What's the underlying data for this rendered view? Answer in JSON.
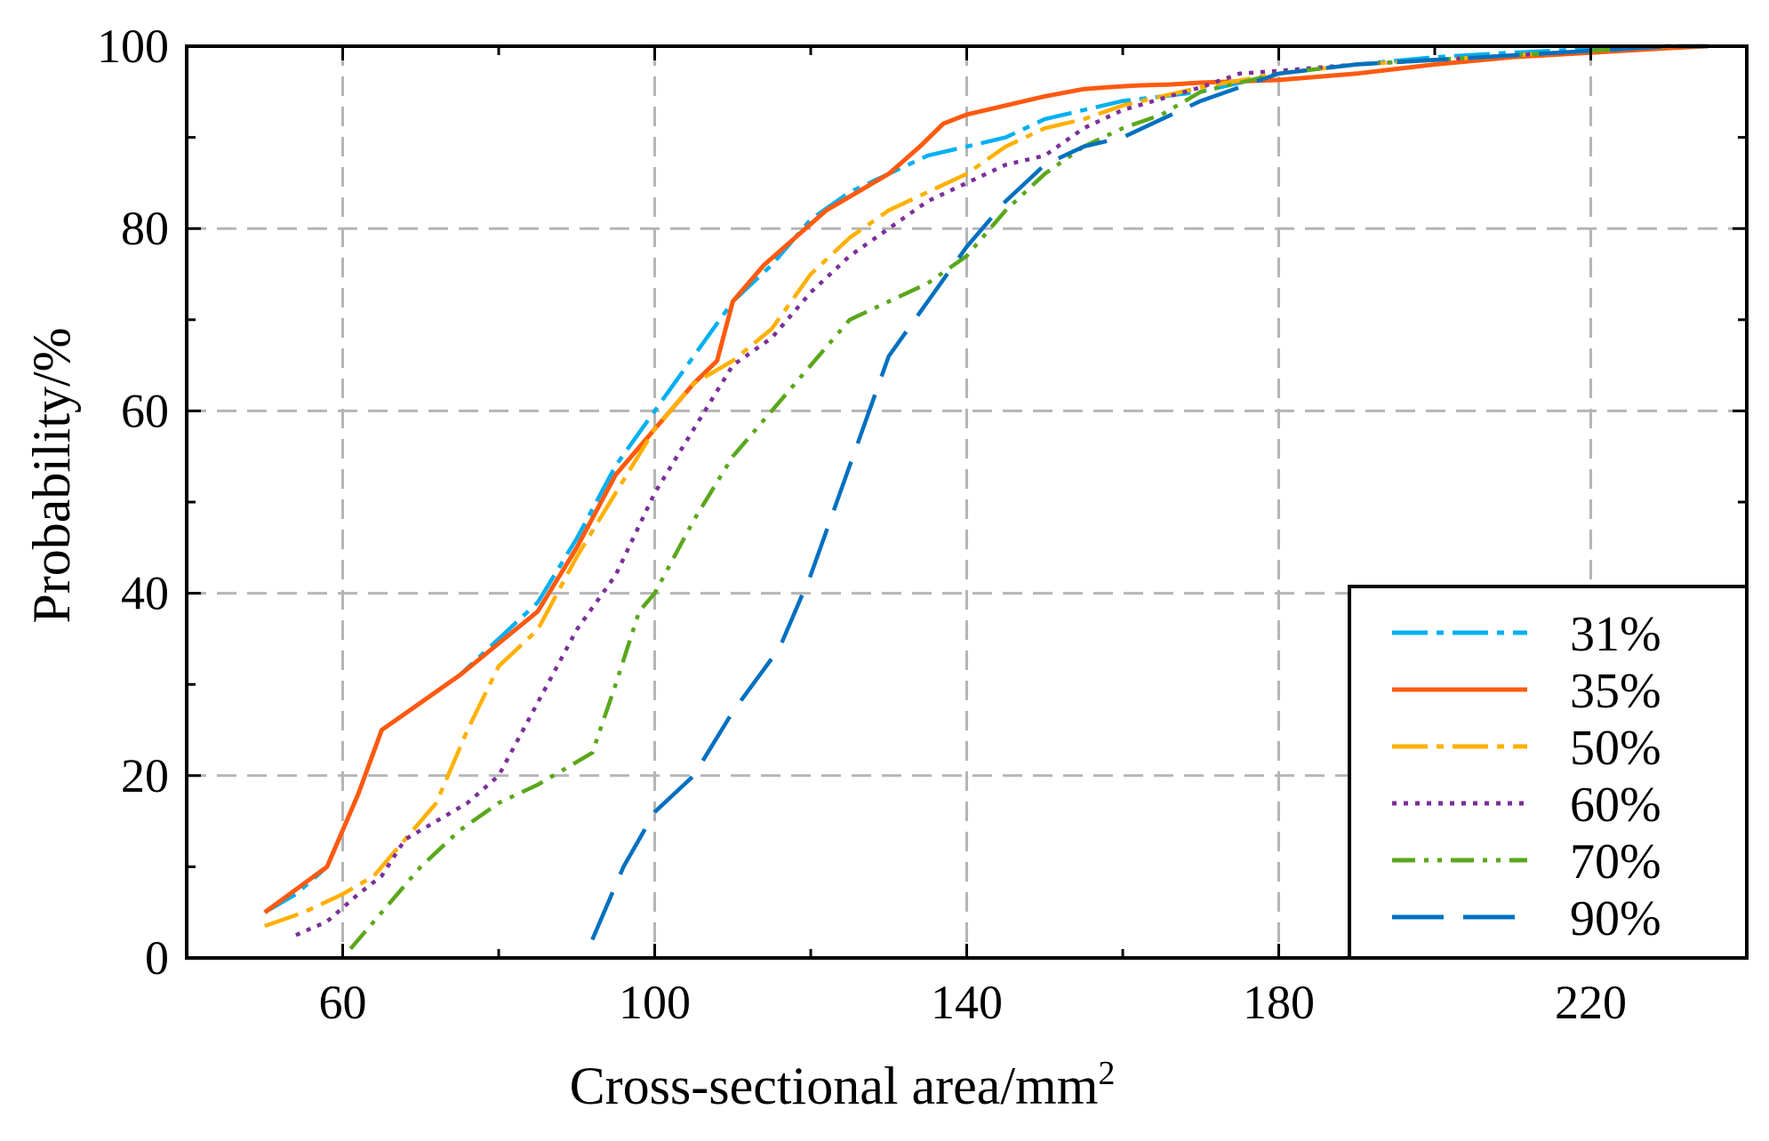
{
  "chart_data": {
    "type": "line",
    "title": "",
    "xlabel": "Cross-sectional area/mm",
    "xlabel_superscript": "2",
    "ylabel": "Probability/%",
    "xlim": [
      40,
      240
    ],
    "ylim": [
      0,
      100
    ],
    "xticks": [
      60,
      100,
      140,
      180,
      220
    ],
    "xtick_labels": [
      "60",
      "100",
      "140",
      "180",
      "220"
    ],
    "yticks": [
      0,
      20,
      40,
      60,
      80,
      100
    ],
    "ytick_labels": [
      "0",
      "20",
      "40",
      "60",
      "80",
      "100"
    ],
    "grid": true,
    "legend_position": "bottom-right",
    "series": [
      {
        "name": "31%",
        "color": "#00b0f0",
        "dash": "dash-dot",
        "x": [
          50,
          54,
          58,
          62,
          65,
          70,
          75,
          80,
          85,
          90,
          95,
          100,
          105,
          110,
          115,
          120,
          125,
          130,
          135,
          140,
          145,
          150,
          155,
          160,
          170,
          180,
          190,
          200,
          210,
          220,
          230,
          235
        ],
        "y": [
          5,
          7,
          10,
          18,
          25,
          28,
          31,
          35,
          39,
          46,
          54,
          60,
          66,
          72,
          76,
          81,
          84,
          86,
          88,
          89,
          90,
          92,
          93,
          94,
          95,
          97,
          98,
          98.8,
          99.3,
          99.7,
          100,
          100
        ]
      },
      {
        "name": "35%",
        "color": "#ff5a10",
        "dash": "solid",
        "x": [
          50,
          54,
          58,
          62,
          65,
          70,
          75,
          80,
          85,
          90,
          95,
          100,
          105,
          108,
          110,
          114,
          118,
          122,
          126,
          130,
          134,
          137,
          140,
          145,
          150,
          155,
          158,
          162,
          166,
          170,
          180,
          190,
          200,
          210,
          220,
          230,
          235
        ],
        "y": [
          5,
          7.5,
          10,
          18,
          25,
          28,
          31,
          34.5,
          38,
          45,
          53,
          58,
          63,
          65.5,
          72,
          76,
          79,
          82,
          84,
          86,
          89,
          91.5,
          92.5,
          93.5,
          94.5,
          95.3,
          95.5,
          95.7,
          95.8,
          96,
          96.3,
          97,
          98,
          98.8,
          99.3,
          99.8,
          100
        ]
      },
      {
        "name": "50%",
        "color": "#ffb000",
        "dash": "dash-dot",
        "x": [
          50,
          55,
          60,
          64,
          68,
          72,
          76,
          80,
          85,
          90,
          95,
          100,
          105,
          110,
          115,
          120,
          125,
          130,
          135,
          140,
          145,
          150,
          155,
          160,
          170,
          180,
          190,
          200,
          210,
          220,
          230,
          235
        ],
        "y": [
          3.5,
          5,
          7,
          9,
          13,
          17,
          25,
          32,
          36,
          44,
          51,
          58,
          63,
          65.5,
          69,
          75,
          79,
          82,
          84,
          86,
          89,
          91,
          92,
          93.5,
          95.5,
          97,
          98,
          98.5,
          99,
          99.5,
          100,
          100
        ]
      },
      {
        "name": "60%",
        "color": "#7b2f9a",
        "dash": "dot",
        "x": [
          54,
          58,
          62,
          65,
          68,
          72,
          76,
          80,
          85,
          90,
          95,
          100,
          105,
          110,
          115,
          120,
          125,
          130,
          135,
          140,
          145,
          150,
          155,
          160,
          170,
          175,
          180,
          190,
          200,
          210,
          220,
          230,
          235
        ],
        "y": [
          2.5,
          4,
          7,
          9,
          13,
          15,
          17,
          20,
          28,
          36,
          42,
          51,
          58,
          65,
          68,
          73,
          77,
          80,
          83,
          85,
          87,
          88,
          91,
          93,
          95.5,
          97,
          97.3,
          98,
          98.5,
          99,
          99.5,
          100,
          100
        ]
      },
      {
        "name": "70%",
        "color": "#5aa71b",
        "dash": "dash-dot-dot",
        "x": [
          61,
          65,
          70,
          75,
          80,
          85,
          90,
          92,
          95,
          98,
          100,
          105,
          110,
          115,
          120,
          125,
          130,
          135,
          140,
          145,
          150,
          155,
          160,
          165,
          170,
          180,
          190,
          200,
          210,
          220,
          230,
          235
        ],
        "y": [
          1,
          5,
          10,
          14,
          17,
          19,
          21.5,
          22.5,
          30,
          38,
          40,
          48,
          55,
          60,
          65,
          70,
          72,
          74,
          77,
          82,
          86,
          89,
          91,
          92.5,
          95,
          97,
          98,
          98.5,
          99,
          99.5,
          100,
          100
        ]
      },
      {
        "name": "90%",
        "color": "#0070c0",
        "dash": "long-dash",
        "x": [
          92,
          96,
          100,
          105,
          110,
          116,
          120,
          125,
          130,
          135,
          140,
          145,
          150,
          155,
          160,
          165,
          170,
          175,
          180,
          190,
          200,
          210,
          220,
          230,
          235
        ],
        "y": [
          2,
          10,
          16,
          20,
          27,
          34,
          42,
          54,
          66,
          72,
          78,
          83,
          87,
          89,
          90,
          92,
          94,
          95.5,
          97,
          98,
          98.5,
          99,
          99.5,
          100,
          100
        ]
      }
    ]
  }
}
